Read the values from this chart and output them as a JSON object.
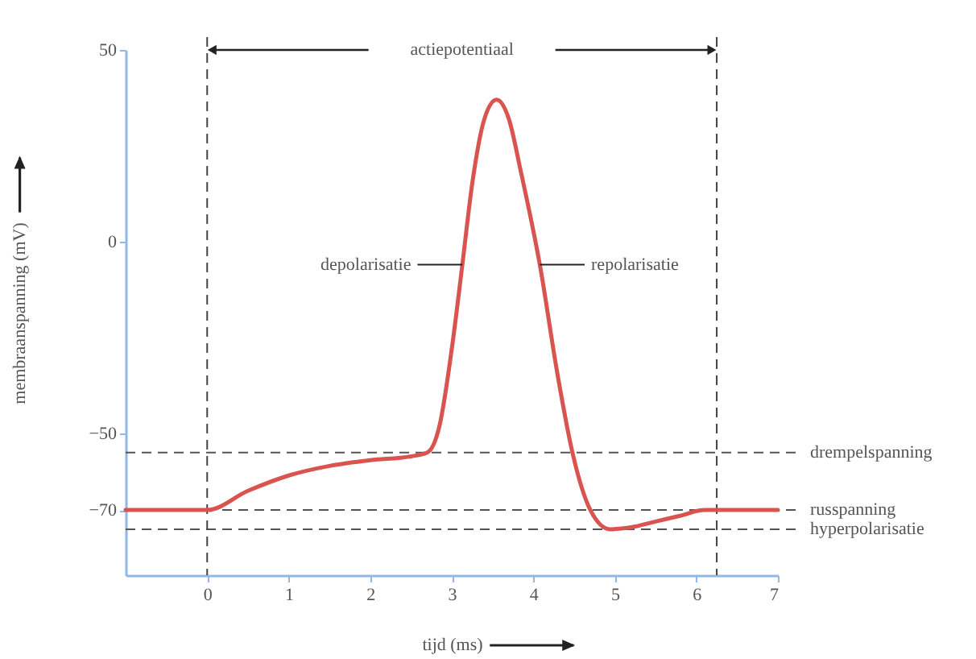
{
  "chart_data": {
    "type": "line",
    "xlabel": "tijd (ms)",
    "ylabel": "membraanspanning (mV)",
    "xlim": [
      -1,
      7
    ],
    "xticks": [
      0,
      1,
      2,
      3,
      4,
      5,
      6,
      7
    ],
    "ylim": [
      -87,
      50
    ],
    "yticks": [
      50,
      0,
      -50,
      -70
    ],
    "grid": false,
    "series": [
      {
        "color": "#d9534f",
        "x": [
          -1,
          0,
          0.5,
          1,
          1.5,
          2,
          2.5,
          2.7,
          2.85,
          3.0,
          3.13,
          3.25,
          3.4,
          3.55,
          3.7,
          3.85,
          4.08,
          4.3,
          4.48,
          4.7,
          4.94,
          5.2,
          5.5,
          5.8,
          6.1,
          6.3,
          7
        ],
        "values": [
          -70,
          -70,
          -65,
          -61,
          -58.5,
          -57,
          -56,
          -55,
          -48,
          -28,
          -6,
          15,
          32,
          37,
          32,
          18,
          -6,
          -35,
          -55,
          -70,
          -75,
          -74.5,
          -73,
          -71.5,
          -70,
          -70,
          -70
        ]
      }
    ],
    "ref_lines": [
      {
        "axis": "y",
        "value": -55,
        "label": "drempelspanning",
        "color": "#555555",
        "line_style": "dashed"
      },
      {
        "axis": "y",
        "value": -70,
        "label": "russpanning",
        "color": "#555555",
        "line_style": "dashed"
      },
      {
        "axis": "y",
        "value": -75,
        "label": "hyperpolarisatie",
        "color": "#555555",
        "line_style": "dashed"
      },
      {
        "axis": "x",
        "value": 0,
        "color": "#444444",
        "line_style": "dashed"
      },
      {
        "axis": "x",
        "value": 6.25,
        "color": "#444444",
        "line_style": "dashed"
      }
    ],
    "annotations": [
      "actiepotentiaal",
      {
        "text": "depolarisatie",
        "x": 3.13,
        "y": -6
      },
      {
        "text": "repolarisatie",
        "x": 4.08,
        "y": -6
      }
    ]
  }
}
